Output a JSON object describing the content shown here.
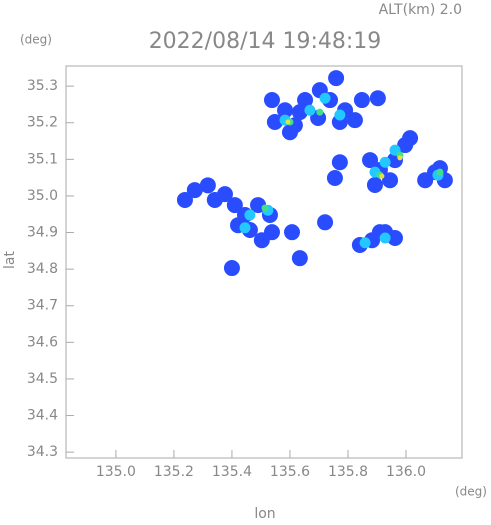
{
  "chart_data": {
    "type": "scatter",
    "title": "2022/08/14 19:48:19",
    "subtitle": "ALT(km) 2.0",
    "x_label": "lon",
    "y_label": "lat",
    "x_unit": "(deg)",
    "y_unit": "(deg)",
    "xlim": [
      134.828,
      136.193
    ],
    "ylim": [
      34.284,
      35.355
    ],
    "xticks": [
      {
        "value": 135.0,
        "label": "135.0"
      },
      135.2,
      135.4,
      135.6,
      135.8,
      {
        "value": 136.0,
        "label": "136.0"
      }
    ],
    "yticks": [
      35.3,
      35.2,
      35.1,
      {
        "value": 35.0,
        "label": "35.0"
      },
      34.9,
      34.8,
      34.7,
      34.6,
      34.5,
      34.4,
      34.3
    ],
    "series": [
      {
        "color": "#2a4cff",
        "x": [
          135.538,
          135.583,
          135.548,
          135.617,
          135.652,
          135.703,
          135.738,
          135.79,
          135.824,
          135.772,
          135.697,
          135.634,
          135.848,
          135.6,
          135.759,
          135.903,
          135.772,
          135.755,
          135.876,
          135.91,
          135.962,
          135.997,
          136.014,
          135.893,
          135.945,
          136.066,
          136.1,
          136.117,
          136.134,
          135.238,
          135.272,
          135.317,
          135.341,
          135.376,
          135.41,
          135.445,
          135.49,
          135.531,
          135.421,
          135.462,
          135.503,
          135.538,
          135.4,
          135.634,
          135.607,
          135.721,
          135.841,
          135.883,
          135.928,
          135.962,
          135.91
        ],
        "values": [
          35.262,
          35.234,
          35.202,
          35.193,
          35.262,
          35.289,
          35.262,
          35.234,
          35.207,
          35.202,
          35.213,
          35.229,
          35.262,
          35.174,
          35.322,
          35.267,
          35.092,
          35.049,
          35.098,
          35.071,
          35.098,
          35.139,
          35.158,
          35.03,
          35.043,
          35.043,
          35.065,
          35.076,
          35.043,
          34.989,
          35.016,
          35.029,
          34.989,
          35.005,
          34.975,
          34.948,
          34.975,
          34.948,
          34.92,
          34.907,
          34.879,
          34.901,
          34.803,
          34.83,
          34.901,
          34.928,
          34.866,
          34.879,
          34.901,
          34.885,
          34.901
        ]
      },
      {
        "color": "#22c8ff",
        "x": [
          135.583,
          135.669,
          135.721,
          135.772,
          135.893,
          135.962,
          135.928,
          135.462,
          135.524,
          135.445,
          135.928,
          136.11,
          135.859
        ],
        "values": [
          35.207,
          35.234,
          35.267,
          35.221,
          35.065,
          35.125,
          35.092,
          34.948,
          34.961,
          34.913,
          34.885,
          35.057,
          34.872
        ]
      },
      {
        "color": "#40e088",
        "x": [
          135.6,
          135.703,
          135.979,
          135.91,
          135.514,
          136.117
        ],
        "values": [
          35.202,
          35.229,
          35.112,
          35.057,
          34.967,
          35.065
        ]
      },
      {
        "color": "#e8e040",
        "x": [
          135.593,
          135.917,
          135.979
        ],
        "values": [
          35.202,
          35.054,
          35.104
        ]
      }
    ]
  }
}
